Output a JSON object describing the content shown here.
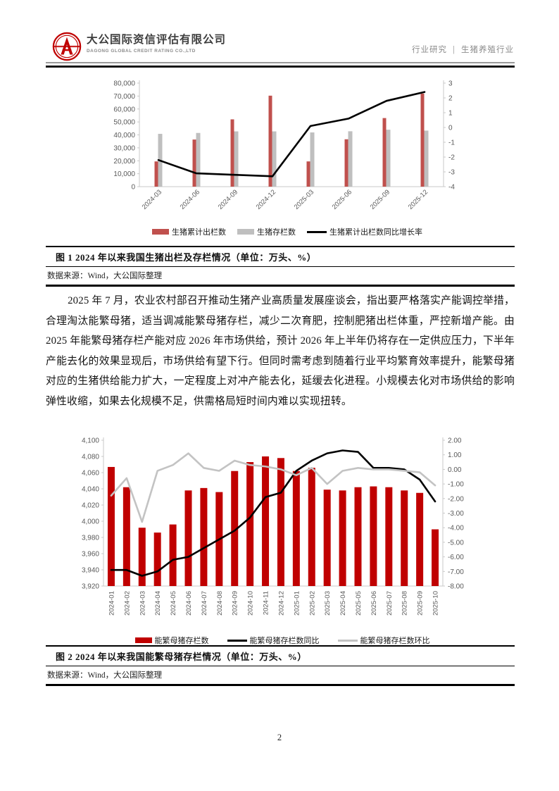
{
  "header": {
    "company_cn": "大公国际资信评估有限公司",
    "company_en": "DAGONG GLOBAL CREDIT RATING CO.,LTD",
    "doc_type": "行业研究",
    "separator": "|",
    "industry": "生猪养殖行业"
  },
  "figure1": {
    "caption": "图 1  2024 年以来我国生猪出栏及存栏情况（单位：万头、%）",
    "source": "数据来源：Wind，大公国际整理"
  },
  "paragraph": "2025 年 7 月，农业农村部召开推动生猪产业高质量发展座谈会，指出要严格落实产能调控举措，合理淘汰能繁母猪，适当调减能繁母猪存栏，减少二次育肥，控制肥猪出栏体重，严控新增产能。由 2025 年能繁母猪存栏产能对应 2026 年市场供给，预计 2026 年上半年仍将存在一定供应压力，下半年产能去化的效果显现后，市场供给有望下行。但同时需考虑到随着行业平均繁育效率提升，能繁母猪对应的生猪供给能力扩大，一定程度上对冲产能去化，延缓去化进程。小规模去化对市场供给的影响弹性收缩，如果去化规模不足，供需格局短时间内难以实现扭转。",
  "figure2": {
    "caption": "图 2  2024 年以来我国能繁母猪存栏情况（单位：万头、%）",
    "source": "数据来源：Wind，大公国际整理"
  },
  "footer": {
    "page_number": "2"
  },
  "chart_data": [
    {
      "type": "bar",
      "title": "2024年以来我国生猪出栏及存栏情况",
      "categories": [
        "2024-03",
        "2024-06",
        "2024-09",
        "2024-12",
        "2025-03",
        "2025-06",
        "2025-09",
        "2025-12"
      ],
      "series": [
        {
          "name": "生猪累计出栏数",
          "kind": "bar",
          "color": "#C0504D",
          "axis": "left",
          "values": [
            19500,
            36400,
            52000,
            70300,
            19500,
            36600,
            53000,
            71900
          ]
        },
        {
          "name": "生猪存栏数",
          "kind": "bar",
          "color": "#BFBFBF",
          "axis": "left",
          "values": [
            40800,
            41500,
            42700,
            42700,
            41900,
            42800,
            44000,
            43300
          ]
        },
        {
          "name": "生猪累计出栏数同比增长率",
          "kind": "line",
          "color": "#000000",
          "axis": "right",
          "values": [
            -2.2,
            -3.1,
            -3.2,
            -3.3,
            0.1,
            0.6,
            1.8,
            2.4
          ]
        }
      ],
      "left_axis": {
        "min": 0,
        "max": 80000,
        "tick_labels_top_to_bottom": [
          "80,000",
          "70,000",
          "60,000",
          "50,000",
          "40,000",
          "30,000",
          "20,000",
          "10,000",
          "0"
        ]
      },
      "right_axis": {
        "min": -4,
        "max": 3,
        "tick_labels_top_to_bottom": [
          "3",
          "2",
          "1",
          "0",
          "-1",
          "-2",
          "-3",
          "-4"
        ]
      },
      "legend_position": "bottom",
      "grid": false
    },
    {
      "type": "bar",
      "title": "2024年以来我国能繁母猪存栏情况",
      "categories": [
        "2024-01",
        "2024-02",
        "2024-03",
        "2024-04",
        "2024-05",
        "2024-06",
        "2024-07",
        "2024-08",
        "2024-09",
        "2024-10",
        "2024-11",
        "2024-12",
        "2025-01",
        "2025-02",
        "2025-03",
        "2025-04",
        "2025-05",
        "2025-06",
        "2025-07",
        "2025-08",
        "2025-09",
        "2025-10"
      ],
      "series": [
        {
          "name": "能繁母猪存栏数",
          "kind": "bar",
          "color": "#C00000",
          "axis": "left",
          "values": [
            4067,
            4042,
            3992,
            3986,
            3996,
            4038,
            4041,
            4036,
            4062,
            4073,
            4080,
            4078,
            4062,
            4066,
            4039,
            4038,
            4042,
            4043,
            4042,
            4038,
            4035,
            3990
          ]
        },
        {
          "name": "能繁母猪存栏数同比",
          "kind": "line",
          "color": "#000000",
          "axis": "right",
          "values": [
            -6.9,
            -6.9,
            -7.3,
            -7.0,
            -6.2,
            -6.0,
            -5.4,
            -4.8,
            -4.2,
            -3.3,
            -1.9,
            -1.6,
            -0.1,
            0.6,
            1.1,
            1.3,
            1.2,
            0.1,
            0.1,
            0.0,
            -0.7,
            -2.2
          ]
        },
        {
          "name": "能繁母猪存栏数环比",
          "kind": "line",
          "color": "#C3C3C3",
          "axis": "right",
          "values": [
            -1.8,
            -0.6,
            -3.6,
            -0.1,
            0.3,
            1.1,
            0.1,
            -0.1,
            0.6,
            0.3,
            0.2,
            0.0,
            -0.4,
            0.1,
            -1.0,
            -0.1,
            0.1,
            0.0,
            0.0,
            -0.1,
            -0.2,
            -1.1
          ]
        }
      ],
      "left_axis": {
        "min": 3920,
        "max": 4100,
        "tick_labels_top_to_bottom": [
          "4,100",
          "4,080",
          "4,060",
          "4,040",
          "4,020",
          "4,000",
          "3,980",
          "3,960",
          "3,940",
          "3,920"
        ]
      },
      "right_axis": {
        "min": -8,
        "max": 2,
        "tick_labels_top_to_bottom": [
          "2.00",
          "1.00",
          "0.00",
          "-1.00",
          "-2.00",
          "-3.00",
          "-4.00",
          "-5.00",
          "-6.00",
          "-7.00",
          "-8.00"
        ]
      },
      "legend_position": "bottom",
      "grid": false
    }
  ]
}
